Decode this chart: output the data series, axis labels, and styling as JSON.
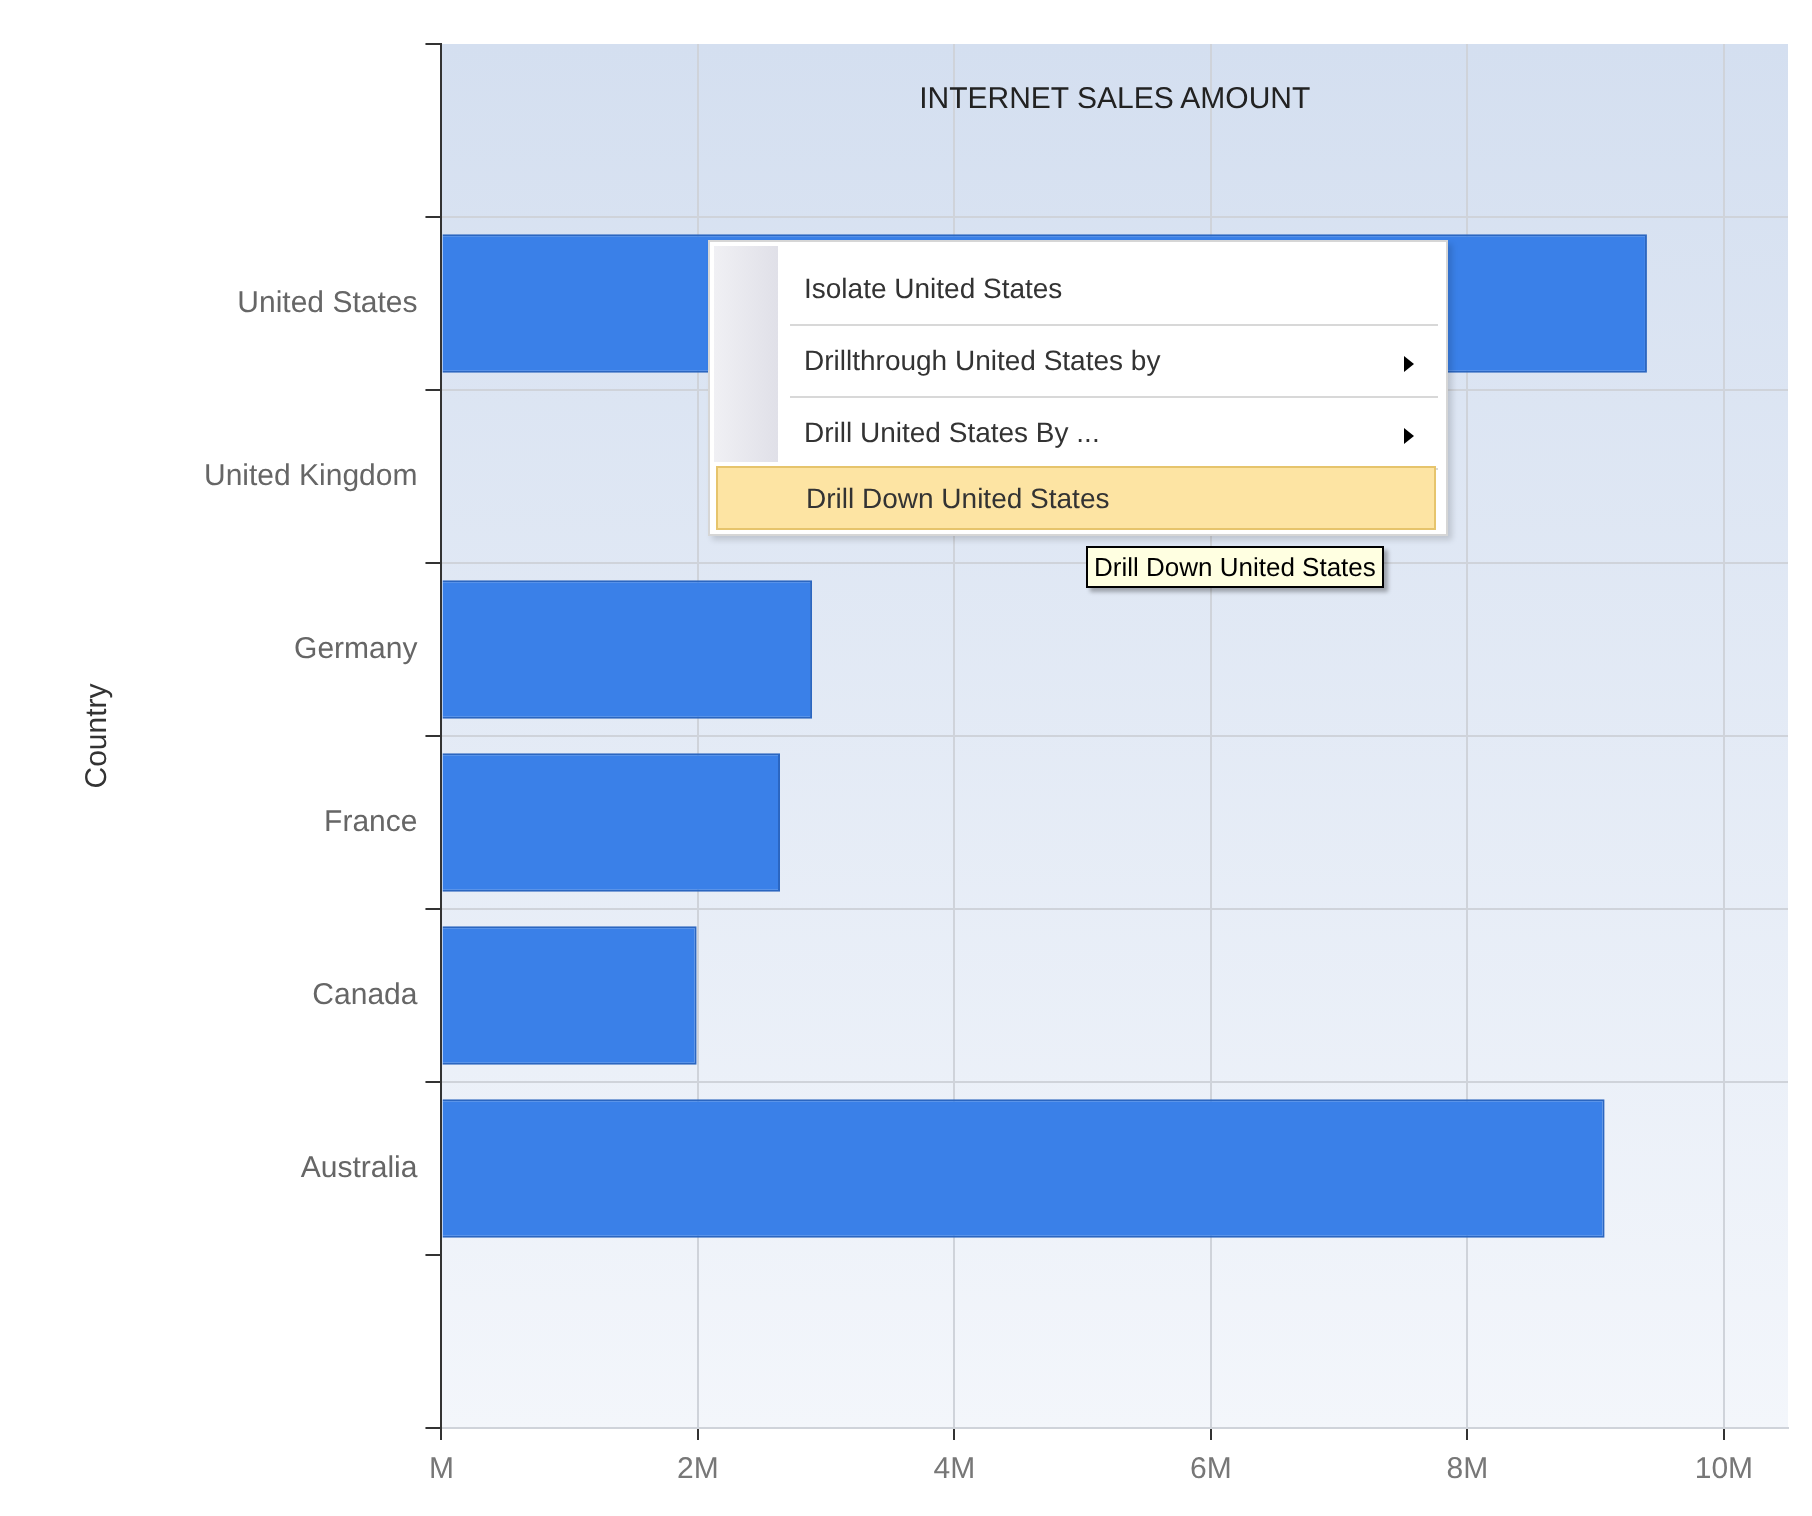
{
  "chart_data": {
    "type": "bar",
    "orientation": "horizontal",
    "title": "INTERNET SALES AMOUNT",
    "ylabel": "Country",
    "categories": [
      "United States",
      "United Kingdom",
      "Germany",
      "France",
      "Canada",
      "Australia"
    ],
    "values": [
      9.4,
      null,
      2.89,
      2.64,
      1.99,
      9.07
    ],
    "color": "#3a80e8",
    "xlim": [
      0,
      10.5
    ],
    "xticks": [
      {
        "value": 0,
        "label": "M"
      },
      {
        "value": 2,
        "label": "2M"
      },
      {
        "value": 4,
        "label": "4M"
      },
      {
        "value": 6,
        "label": "6M"
      },
      {
        "value": 8,
        "label": "8M"
      },
      {
        "value": 10,
        "label": "10M"
      }
    ],
    "grid": true,
    "legend": false,
    "annotations": [
      "Isolate United States",
      "Drillthrough United States by",
      "Drill United States By ...",
      "Drill Down United States",
      "Drill Down United States"
    ]
  }
}
